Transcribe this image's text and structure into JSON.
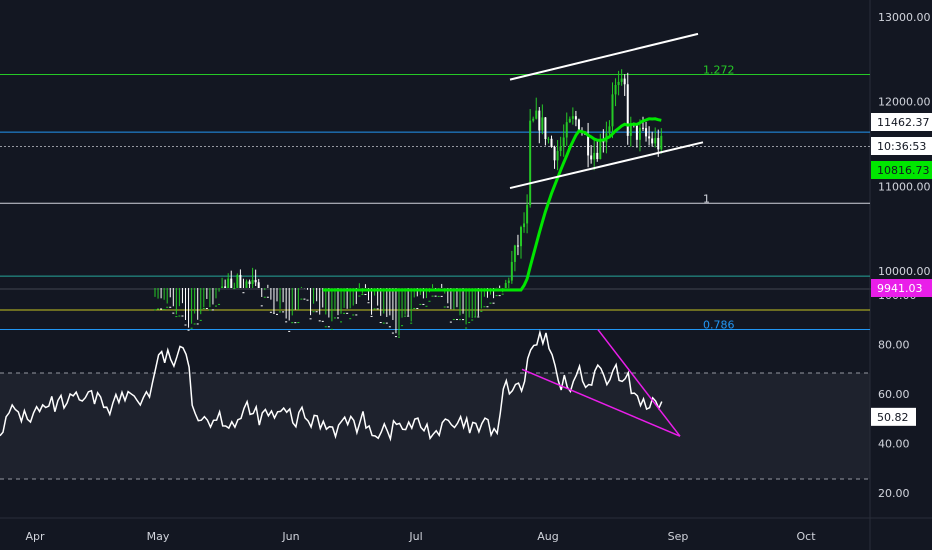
{
  "chart_data": [
    {
      "type": "candlestick",
      "ylim": [
        9800,
        13200
      ],
      "price_ticks": [
        "13000.00",
        "12000.00",
        "11000.00",
        "10000.00"
      ],
      "date_ticks": [
        "Apr",
        "May",
        "Jun",
        "Jul",
        "Aug",
        "Sep",
        "Oct"
      ],
      "horizontal_levels": [
        {
          "label": "1.272",
          "value": 12320,
          "color": "#26c926"
        },
        {
          "label": "",
          "value": 11640,
          "color": "#2196f3"
        },
        {
          "label": "",
          "value": 11470,
          "color": "#9598a1"
        },
        {
          "label": "1",
          "value": 10800,
          "color": "#d1d4dc"
        },
        {
          "label": "",
          "value": 9940,
          "color": "#26a69a"
        },
        {
          "label": "",
          "value": 9540,
          "color": "#c6c623"
        },
        {
          "label": "0.786",
          "value": 9310,
          "color": "#2196f3"
        }
      ],
      "price_tags": [
        {
          "text": "11462.37",
          "bg": "#ffffff",
          "fg": "#131722"
        },
        {
          "text": "10:36:53",
          "bg": "#ffffff",
          "fg": "#131722"
        },
        {
          "text": "10816.73",
          "bg": "#00e600",
          "fg": "#131722"
        },
        {
          "text": "9941.03",
          "bg": "#e91ee9",
          "fg": "#ffffff"
        }
      ],
      "channel": {
        "upper": [
          [
            12260,
            29
          ],
          [
            12560,
            45
          ]
        ],
        "lower": [
          [
            10980,
            29
          ],
          [
            11670,
            45
          ]
        ]
      },
      "moving_average_color": "#00e600",
      "grid": false
    },
    {
      "type": "line",
      "name_hidden": true,
      "ylim": [
        10,
        102
      ],
      "ticks": [
        "100.00",
        "80.00",
        "60.00",
        "40.00",
        "20.00"
      ],
      "current_value_label": "50.82",
      "bands": [
        70,
        30
      ],
      "trendline_color": "#e91ee9",
      "line_color": "#ffffff"
    }
  ]
}
